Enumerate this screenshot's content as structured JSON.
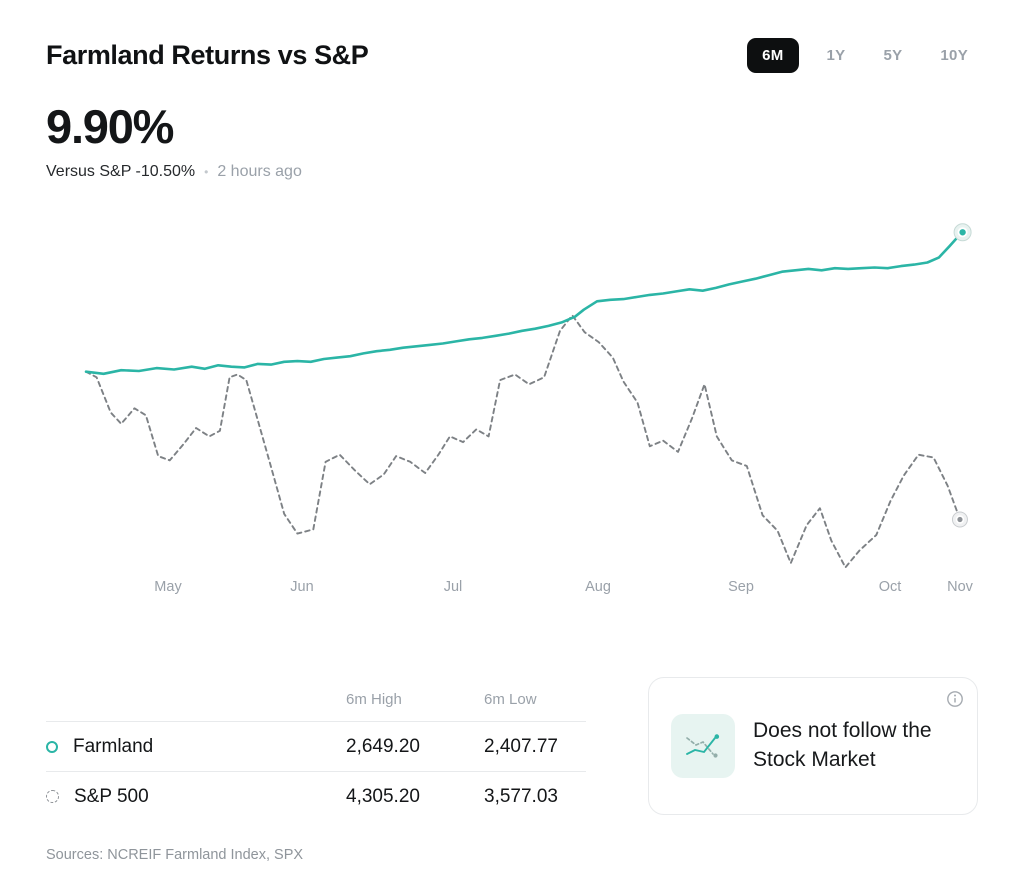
{
  "header": {
    "title": "Farmland Returns vs S&P",
    "ranges": [
      {
        "label": "6M",
        "active": true
      },
      {
        "label": "1Y",
        "active": false
      },
      {
        "label": "5Y",
        "active": false
      },
      {
        "label": "10Y",
        "active": false
      }
    ]
  },
  "summary": {
    "value": "9.90%",
    "comparison": "Versus S&P -10.50%",
    "separator": "•",
    "updated": "2 hours ago"
  },
  "chart_data": {
    "type": "line",
    "unit": "percent change from period start",
    "ylim": [
      -14.3,
      10.7
    ],
    "grid": false,
    "legend_position": "table-below",
    "x_ticks": [
      {
        "label": "May",
        "pos": 0.093
      },
      {
        "label": "Jun",
        "pos": 0.245
      },
      {
        "label": "Jul",
        "pos": 0.417
      },
      {
        "label": "Aug",
        "pos": 0.581
      },
      {
        "label": "Sep",
        "pos": 0.743
      },
      {
        "label": "Oct",
        "pos": 0.913
      },
      {
        "label": "Nov",
        "pos": 0.992
      }
    ],
    "series": [
      {
        "name": "Farmland",
        "style": "solid",
        "color": "#2bb5a6",
        "end_value_pct": 9.9,
        "period_high": 2649.2,
        "period_low": 2407.77,
        "points": [
          [
            0,
            0
          ],
          [
            0.02,
            -0.15
          ],
          [
            0.04,
            0.1
          ],
          [
            0.06,
            0.05
          ],
          [
            0.08,
            0.25
          ],
          [
            0.1,
            0.15
          ],
          [
            0.12,
            0.35
          ],
          [
            0.135,
            0.2
          ],
          [
            0.15,
            0.45
          ],
          [
            0.165,
            0.35
          ],
          [
            0.18,
            0.3
          ],
          [
            0.195,
            0.55
          ],
          [
            0.21,
            0.5
          ],
          [
            0.225,
            0.7
          ],
          [
            0.24,
            0.75
          ],
          [
            0.255,
            0.7
          ],
          [
            0.27,
            0.9
          ],
          [
            0.285,
            1.0
          ],
          [
            0.3,
            1.1
          ],
          [
            0.315,
            1.3
          ],
          [
            0.33,
            1.45
          ],
          [
            0.345,
            1.55
          ],
          [
            0.36,
            1.7
          ],
          [
            0.375,
            1.8
          ],
          [
            0.39,
            1.9
          ],
          [
            0.405,
            2.0
          ],
          [
            0.42,
            2.15
          ],
          [
            0.435,
            2.3
          ],
          [
            0.45,
            2.4
          ],
          [
            0.465,
            2.55
          ],
          [
            0.48,
            2.7
          ],
          [
            0.495,
            2.9
          ],
          [
            0.51,
            3.05
          ],
          [
            0.525,
            3.25
          ],
          [
            0.54,
            3.5
          ],
          [
            0.555,
            3.9
          ],
          [
            0.565,
            4.4
          ],
          [
            0.58,
            5.0
          ],
          [
            0.595,
            5.1
          ],
          [
            0.61,
            5.15
          ],
          [
            0.625,
            5.3
          ],
          [
            0.64,
            5.45
          ],
          [
            0.655,
            5.55
          ],
          [
            0.67,
            5.7
          ],
          [
            0.685,
            5.85
          ],
          [
            0.7,
            5.75
          ],
          [
            0.715,
            5.95
          ],
          [
            0.73,
            6.2
          ],
          [
            0.745,
            6.4
          ],
          [
            0.76,
            6.6
          ],
          [
            0.775,
            6.85
          ],
          [
            0.79,
            7.1
          ],
          [
            0.805,
            7.2
          ],
          [
            0.82,
            7.3
          ],
          [
            0.835,
            7.2
          ],
          [
            0.85,
            7.35
          ],
          [
            0.865,
            7.3
          ],
          [
            0.88,
            7.35
          ],
          [
            0.895,
            7.4
          ],
          [
            0.91,
            7.35
          ],
          [
            0.925,
            7.5
          ],
          [
            0.94,
            7.6
          ],
          [
            0.955,
            7.75
          ],
          [
            0.968,
            8.1
          ],
          [
            0.98,
            8.9
          ],
          [
            0.99,
            9.6
          ],
          [
            0.995,
            9.9
          ]
        ]
      },
      {
        "name": "S&P 500",
        "style": "dashed",
        "color": "#7d8185",
        "end_value_pct": -10.5,
        "period_high": 4305.2,
        "period_low": 3577.03,
        "points": [
          [
            0,
            0
          ],
          [
            0.012,
            -0.4
          ],
          [
            0.028,
            -2.9
          ],
          [
            0.04,
            -3.7
          ],
          [
            0.055,
            -2.6
          ],
          [
            0.068,
            -3.1
          ],
          [
            0.082,
            -6.0
          ],
          [
            0.095,
            -6.3
          ],
          [
            0.11,
            -5.2
          ],
          [
            0.125,
            -4.0
          ],
          [
            0.14,
            -4.6
          ],
          [
            0.152,
            -4.2
          ],
          [
            0.163,
            -0.4
          ],
          [
            0.172,
            -0.2
          ],
          [
            0.182,
            -0.6
          ],
          [
            0.192,
            -2.8
          ],
          [
            0.208,
            -6.3
          ],
          [
            0.225,
            -10.1
          ],
          [
            0.24,
            -11.5
          ],
          [
            0.258,
            -11.2
          ],
          [
            0.272,
            -6.4
          ],
          [
            0.288,
            -5.9
          ],
          [
            0.305,
            -7.0
          ],
          [
            0.322,
            -8.0
          ],
          [
            0.338,
            -7.3
          ],
          [
            0.352,
            -6.0
          ],
          [
            0.368,
            -6.4
          ],
          [
            0.385,
            -7.2
          ],
          [
            0.4,
            -5.9
          ],
          [
            0.413,
            -4.6
          ],
          [
            0.428,
            -5.0
          ],
          [
            0.443,
            -4.1
          ],
          [
            0.457,
            -4.6
          ],
          [
            0.47,
            -0.6
          ],
          [
            0.487,
            -0.2
          ],
          [
            0.503,
            -0.9
          ],
          [
            0.52,
            -0.4
          ],
          [
            0.538,
            2.9
          ],
          [
            0.552,
            4.0
          ],
          [
            0.566,
            2.8
          ],
          [
            0.582,
            2.1
          ],
          [
            0.598,
            1.0
          ],
          [
            0.61,
            -0.7
          ],
          [
            0.626,
            -2.2
          ],
          [
            0.64,
            -5.3
          ],
          [
            0.655,
            -4.9
          ],
          [
            0.672,
            -5.7
          ],
          [
            0.688,
            -3.3
          ],
          [
            0.702,
            -0.9
          ],
          [
            0.716,
            -4.6
          ],
          [
            0.733,
            -6.3
          ],
          [
            0.75,
            -6.7
          ],
          [
            0.768,
            -10.2
          ],
          [
            0.785,
            -11.3
          ],
          [
            0.8,
            -13.6
          ],
          [
            0.818,
            -10.9
          ],
          [
            0.833,
            -9.7
          ],
          [
            0.846,
            -12.0
          ],
          [
            0.862,
            -13.9
          ],
          [
            0.878,
            -12.7
          ],
          [
            0.897,
            -11.6
          ],
          [
            0.913,
            -9.2
          ],
          [
            0.928,
            -7.4
          ],
          [
            0.945,
            -5.9
          ],
          [
            0.962,
            -6.1
          ],
          [
            0.978,
            -8.1
          ],
          [
            0.992,
            -10.5
          ]
        ]
      }
    ]
  },
  "table": {
    "headers": [
      "6m High",
      "6m Low"
    ],
    "rows": [
      {
        "name": "Farmland",
        "high": "2,649.20",
        "low": "2,407.77"
      },
      {
        "name": "S&P 500",
        "high": "4,305.20",
        "low": "3,577.03"
      }
    ]
  },
  "info_card": {
    "text": "Does not follow the Stock Market"
  },
  "footer": {
    "sources": "Sources: NCREIF Farmland Index, SPX"
  }
}
